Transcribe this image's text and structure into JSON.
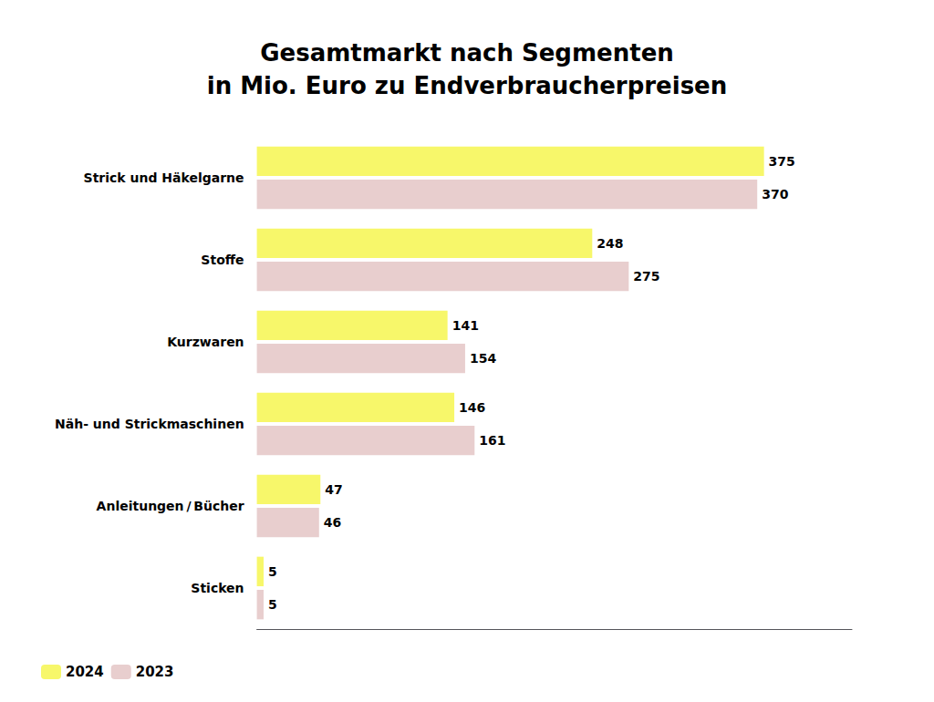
{
  "chart_data": {
    "type": "bar",
    "orientation": "horizontal",
    "title": "Gesamtmarkt nach Segmenten",
    "subtitle": "in Mio. Euro zu Endverbraucherpreisen",
    "categories": [
      "Strick und Häkelgarne",
      "Stoffe",
      "Kurzwaren",
      "Näh- und Strickmaschinen",
      "Anleitungen / Bücher",
      "Sticken"
    ],
    "series": [
      {
        "name": "2024",
        "color": "#F7F76A",
        "values": [
          375,
          248,
          141,
          146,
          47,
          5
        ]
      },
      {
        "name": "2023",
        "color": "#E8CECE",
        "values": [
          370,
          275,
          154,
          161,
          46,
          5
        ]
      }
    ],
    "xlim": [
      0,
      440
    ],
    "grid": false,
    "legend": "lower left",
    "data_labels": true,
    "tick_labels": "y"
  }
}
